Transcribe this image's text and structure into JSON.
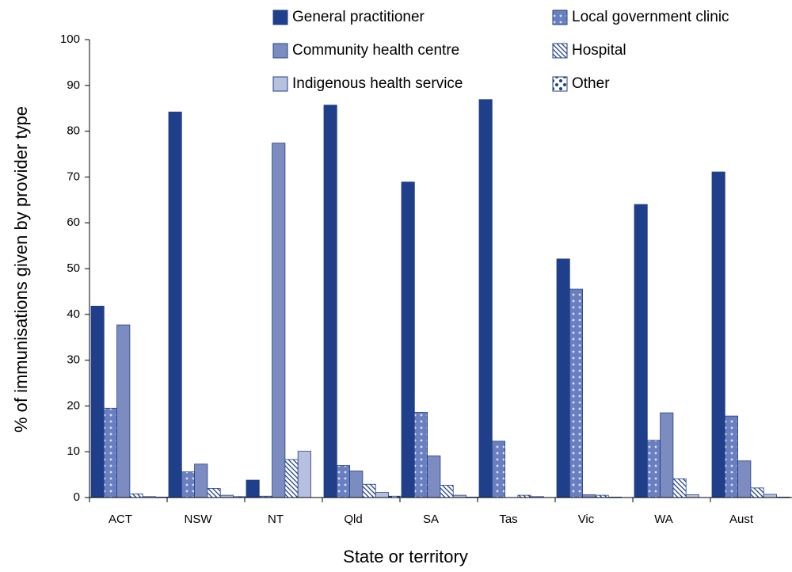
{
  "chart_data": {
    "type": "bar",
    "ylabel": "% of immunisations given by provider type",
    "xlabel": "State or territory",
    "categories": [
      "ACT",
      "NSW",
      "NT",
      "Qld",
      "SA",
      "Tas",
      "Vic",
      "WA",
      "Aust"
    ],
    "series": [
      {
        "name": "General practitioner",
        "color": "#1f3f8a",
        "values": [
          41.8,
          84.2,
          3.8,
          85.7,
          68.9,
          86.9,
          52.1,
          64.0,
          71.1
        ]
      },
      {
        "name": "Local government clinic",
        "color": "#6a7fbf",
        "pattern": "dots",
        "values": [
          19.5,
          5.6,
          0.3,
          7.0,
          18.6,
          12.3,
          45.5,
          12.5,
          17.8
        ]
      },
      {
        "name": "Community health centre",
        "color": "#7d8cc0",
        "values": [
          37.7,
          7.3,
          77.4,
          5.8,
          9.1,
          0,
          0.6,
          18.5,
          8.0
        ]
      },
      {
        "name": "Hospital",
        "color": "#1f3f8a",
        "pattern": "hatch",
        "values": [
          0.8,
          2.0,
          8.3,
          2.9,
          2.7,
          0.5,
          0.5,
          4.1,
          2.1
        ]
      },
      {
        "name": "Indigenous health service",
        "color": "#b8c0e0",
        "values": [
          0.2,
          0.5,
          10.1,
          1.1,
          0.5,
          0.2,
          0.1,
          0.6,
          0.7
        ]
      },
      {
        "name": "Other",
        "color": "#1f3f8a",
        "pattern": "spots",
        "values": [
          0.1,
          0.2,
          0,
          0.3,
          0.1,
          0,
          0,
          0,
          0.1
        ]
      }
    ],
    "ylim": [
      0,
      100
    ],
    "yticks": [
      0,
      10,
      20,
      30,
      40,
      50,
      60,
      70,
      80,
      90,
      100
    ],
    "legend": "top"
  }
}
